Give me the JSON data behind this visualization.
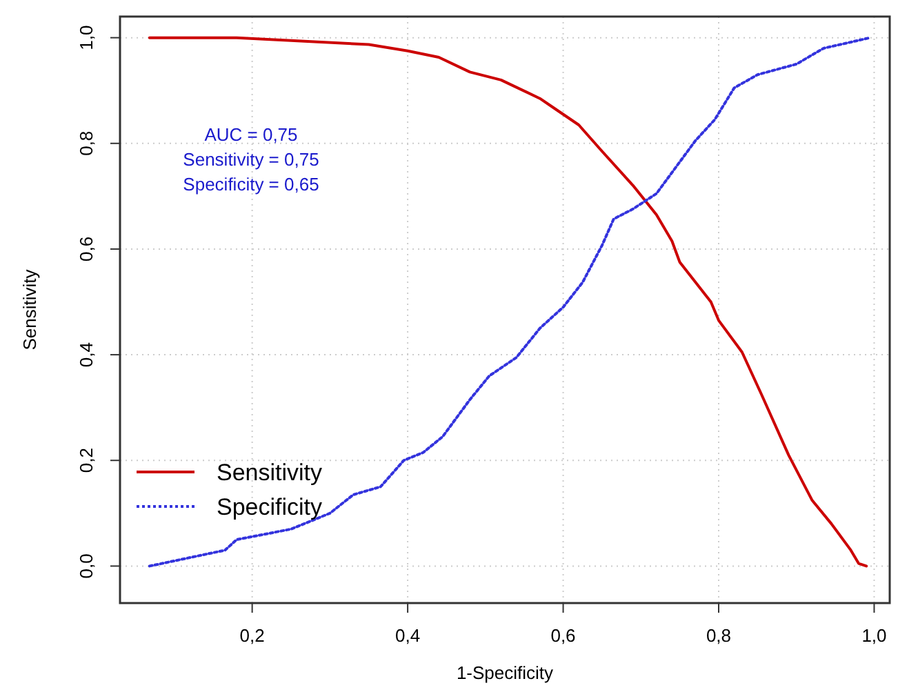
{
  "chart_data": {
    "type": "line",
    "xlabel": "1-Specificity",
    "ylabel": "Sensitivity",
    "xlim": [
      0.03,
      1.02
    ],
    "ylim": [
      -0.07,
      1.04
    ],
    "xticks": [
      {
        "value": 0.2,
        "label": "0,2"
      },
      {
        "value": 0.4,
        "label": "0,4"
      },
      {
        "value": 0.6,
        "label": "0,6"
      },
      {
        "value": 0.8,
        "label": "0,8"
      },
      {
        "value": 1.0,
        "label": "1,0"
      }
    ],
    "yticks": [
      {
        "value": 0,
        "label": "0,0"
      },
      {
        "value": 0.2,
        "label": "0,2"
      },
      {
        "value": 0.4,
        "label": "0,4"
      },
      {
        "value": 0.6,
        "label": "0,6"
      },
      {
        "value": 0.8,
        "label": "0,8"
      },
      {
        "value": 1.0,
        "label": "1,0"
      }
    ],
    "grid": true,
    "legend": "bottom left",
    "annotations": [
      "AUC = 0,75",
      "Sensitivity = 0,75",
      "Specificity = 0,65"
    ],
    "series": [
      {
        "name": "Sensitivity",
        "color": "#cc0000",
        "line_style": "solid",
        "x": [
          0.068,
          0.18,
          0.35,
          0.4,
          0.44,
          0.48,
          0.52,
          0.57,
          0.59,
          0.62,
          0.65,
          0.69,
          0.72,
          0.74,
          0.75,
          0.79,
          0.8,
          0.83,
          0.855,
          0.89,
          0.92,
          0.945,
          0.97,
          0.98,
          0.99
        ],
        "values": [
          1.0,
          1.0,
          0.987,
          0.975,
          0.963,
          0.935,
          0.92,
          0.885,
          0.865,
          0.835,
          0.785,
          0.72,
          0.665,
          0.615,
          0.575,
          0.5,
          0.465,
          0.405,
          0.325,
          0.21,
          0.125,
          0.08,
          0.03,
          0.005,
          0.0
        ]
      },
      {
        "name": "Specificity",
        "color": "#3333dd",
        "line_style": "dotted",
        "x": [
          0.068,
          0.165,
          0.18,
          0.25,
          0.3,
          0.33,
          0.365,
          0.395,
          0.42,
          0.445,
          0.48,
          0.505,
          0.54,
          0.57,
          0.6,
          0.625,
          0.65,
          0.665,
          0.69,
          0.72,
          0.75,
          0.77,
          0.795,
          0.82,
          0.85,
          0.9,
          0.935,
          0.995
        ],
        "values": [
          0.0,
          0.03,
          0.05,
          0.07,
          0.1,
          0.135,
          0.15,
          0.2,
          0.215,
          0.245,
          0.315,
          0.36,
          0.395,
          0.45,
          0.49,
          0.537,
          0.607,
          0.657,
          0.676,
          0.705,
          0.765,
          0.805,
          0.845,
          0.905,
          0.93,
          0.95,
          0.98,
          1.0
        ]
      }
    ]
  }
}
